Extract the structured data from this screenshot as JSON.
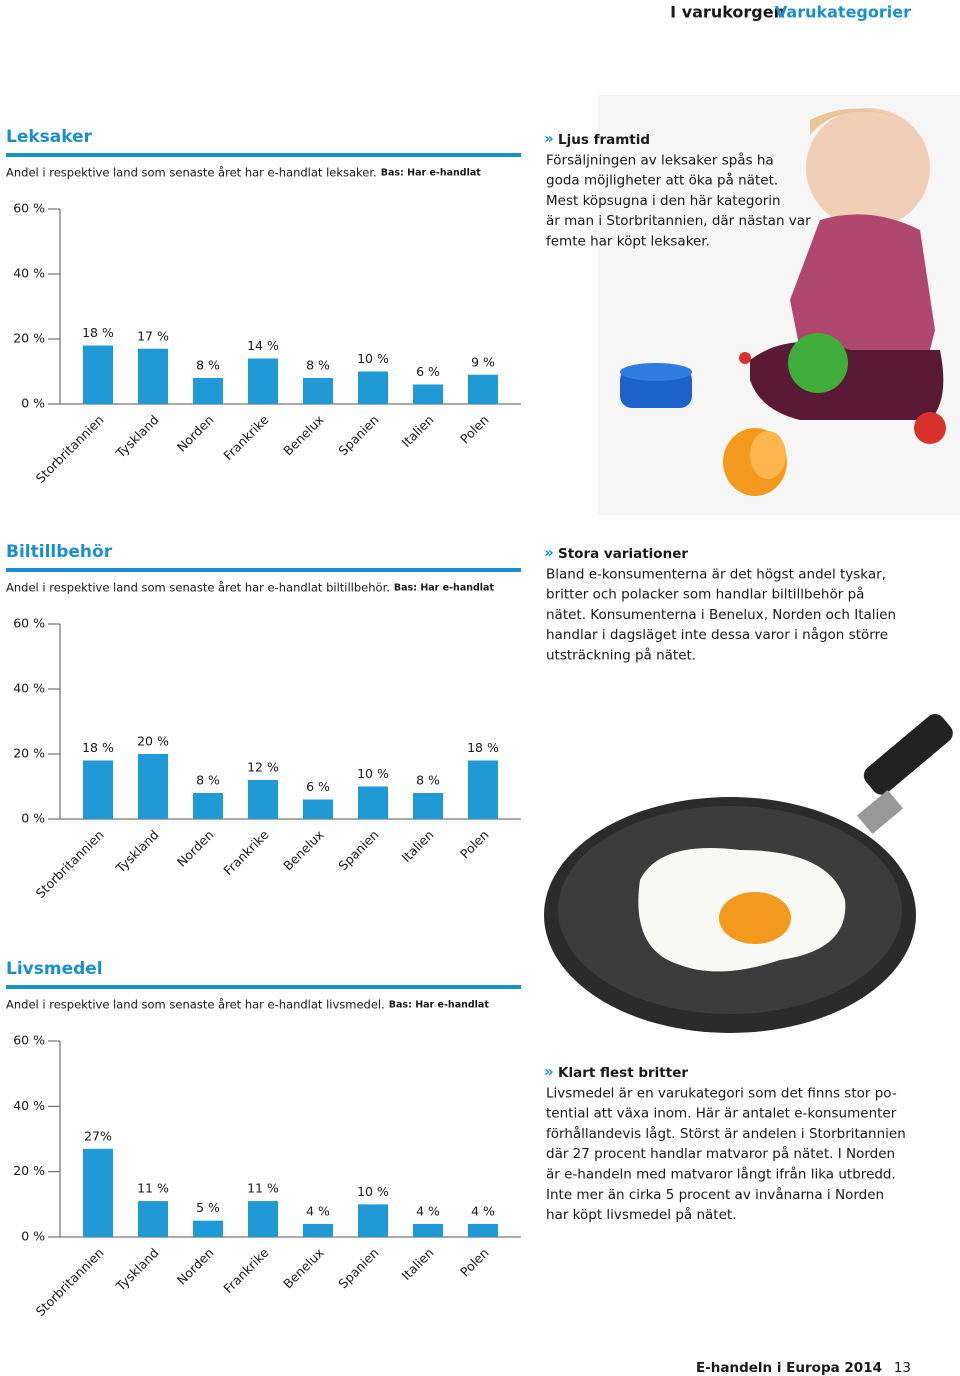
{
  "header": {
    "section": "I varukorgen",
    "page_title": "Varukategorier"
  },
  "chart_data": [
    {
      "type": "bar",
      "title": "Leksaker",
      "subtitle": "Andel i respektive land som senaste året har e-handlat leksaker.",
      "base_note": "Bas: Har e-handlat",
      "categories": [
        "Storbritannien",
        "Tyskland",
        "Norden",
        "Frankrike",
        "Benelux",
        "Spanien",
        "Italien",
        "Polen"
      ],
      "values": [
        18,
        17,
        8,
        14,
        8,
        10,
        6,
        9
      ],
      "value_labels": [
        "18 %",
        "17 %",
        "8 %",
        "14 %",
        "8 %",
        "10 %",
        "6 %",
        "9 %"
      ],
      "color": "#1f9ad6",
      "ylim": [
        0,
        60
      ],
      "yticks": [
        {
          "value": 0,
          "label": "0 %"
        },
        {
          "value": 20,
          "label": "20 %"
        },
        {
          "value": 40,
          "label": "40 %"
        },
        {
          "value": 60,
          "label": "60 %"
        }
      ]
    },
    {
      "type": "bar",
      "title": "Biltillbehör",
      "subtitle": "Andel i respektive land som senaste året har e-handlat biltillbehör.",
      "base_note": "Bas: Har e-handlat",
      "categories": [
        "Storbritannien",
        "Tyskland",
        "Norden",
        "Frankrike",
        "Benelux",
        "Spanien",
        "Italien",
        "Polen"
      ],
      "values": [
        18,
        20,
        8,
        12,
        6,
        10,
        8,
        18
      ],
      "value_labels": [
        "18 %",
        "20 %",
        "8 %",
        "12 %",
        "6 %",
        "10 %",
        "8 %",
        "18 %"
      ],
      "color": "#1f9ad6",
      "ylim": [
        0,
        60
      ],
      "yticks": [
        {
          "value": 0,
          "label": "0 %"
        },
        {
          "value": 20,
          "label": "20 %"
        },
        {
          "value": 40,
          "label": "40 %"
        },
        {
          "value": 60,
          "label": "60 %"
        }
      ]
    },
    {
      "type": "bar",
      "title": "Livsmedel",
      "subtitle": "Andel i respektive land som senaste året har e-handlat livsmedel.",
      "base_note": "Bas: Har e-handlat",
      "categories": [
        "Storbritannien",
        "Tyskland",
        "Norden",
        "Frankrike",
        "Benelux",
        "Spanien",
        "Italien",
        "Polen"
      ],
      "values": [
        27,
        11,
        5,
        11,
        4,
        10,
        4,
        4
      ],
      "value_labels": [
        "27%",
        "11 %",
        "5 %",
        "11 %",
        "4 %",
        "10 %",
        "4 %",
        "4 %"
      ],
      "color": "#1f9ad6",
      "ylim": [
        0,
        60
      ],
      "yticks": [
        {
          "value": 0,
          "label": "0 %"
        },
        {
          "value": 20,
          "label": "20 %"
        },
        {
          "value": 40,
          "label": "40 %"
        },
        {
          "value": 60,
          "label": "60 %"
        }
      ]
    }
  ],
  "articles": [
    {
      "marker": "»",
      "heading": "Ljus framtid",
      "lines": [
        "Försäljningen av leksaker spås ha",
        "goda möjligheter att öka på nätet.",
        "Mest köpsugna i den här kategorin",
        "är man i Storbritannien, där nästan var",
        "femte har köpt leksaker."
      ]
    },
    {
      "marker": "»",
      "heading": "Stora variationer",
      "lines": [
        "Bland e-konsumenterna är det högst andel tyskar,",
        "britter och polacker som handlar biltillbehör på",
        "nätet. Konsumenterna i Benelux, Norden och Italien",
        "handlar i dagsläget inte dessa varor i någon större",
        "utsträckning på nätet."
      ]
    },
    {
      "marker": "»",
      "heading": "Klart flest britter",
      "lines": [
        "Livsmedel är en varukategori som det finns stor po-",
        "tential att växa inom. Här är antalet e-konsumenter",
        "förhållandevis lågt. Störst är andelen i Storbritannien",
        "där 27 procent handlar matvaror på nätet. I Norden",
        "är e-handeln med matvaror långt ifrån lika utbredd.",
        "Inte mer än cirka 5 procent av invånarna i Norden",
        "har köpt livsmedel på nätet."
      ]
    }
  ],
  "footer": {
    "publication": "E-handeln i Europa 2014",
    "page_number": "13"
  }
}
